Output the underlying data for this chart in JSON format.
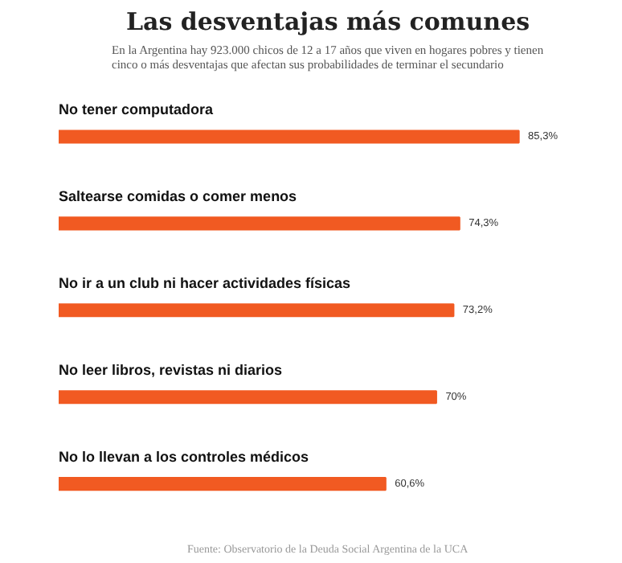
{
  "chart_data": {
    "type": "bar",
    "orientation": "horizontal",
    "title": "Las desventajas más comunes",
    "subtitle": "En la Argentina hay 923.000 chicos de 12 a 17 años que viven en hogares pobres y tienen cinco o más desventajas que afectan sus probabilidades de terminar el secundario",
    "categories": [
      "No tener computadora",
      "Saltearse comidas o comer menos",
      "No ir a un club ni hacer actividades físicas",
      "No leer libros, revistas ni diarios",
      "No lo llevan a los controles médicos"
    ],
    "values": [
      85.3,
      74.3,
      73.2,
      70,
      60.6
    ],
    "value_labels": [
      "85,3%",
      "74,3%",
      "73,2%",
      "70%",
      "60,6%"
    ],
    "color": "#f15a22",
    "annotations": [
      "Fuente: Observatorio de la Deuda Social Argentina de la UCA"
    ]
  }
}
